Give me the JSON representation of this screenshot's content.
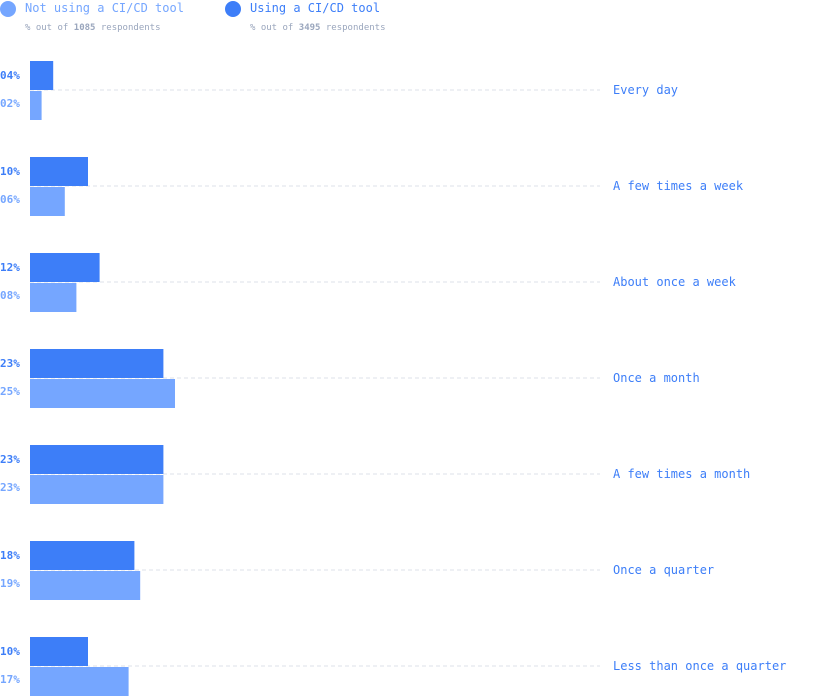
{
  "legend": {
    "not_using": {
      "label": "Not using a CI/CD tool",
      "sub_prefix": "% out of ",
      "count": "1085",
      "sub_suffix": " respondents",
      "color": "#75a6ff"
    },
    "using": {
      "label": "Using a CI/CD tool",
      "sub_prefix": "% out of ",
      "count": "3495",
      "sub_suffix": " respondents",
      "color": "#3d7ef8"
    }
  },
  "chart_data": {
    "type": "bar",
    "orientation": "horizontal",
    "categories": [
      "Every day",
      "A few times a week",
      "About once a week",
      "Once a month",
      "A few times a month",
      "Once a quarter",
      "Less than once a quarter"
    ],
    "series": [
      {
        "name": "Using a CI/CD tool",
        "values": [
          4,
          10,
          12,
          23,
          23,
          18,
          10
        ],
        "labels": [
          "04%",
          "10%",
          "12%",
          "23%",
          "23%",
          "18%",
          "10%"
        ],
        "color": "#3d7ef8"
      },
      {
        "name": "Not using a CI/CD tool",
        "values": [
          2,
          6,
          8,
          25,
          23,
          19,
          17
        ],
        "labels": [
          "02%",
          "06%",
          "08%",
          "25%",
          "23%",
          "19%",
          "17%"
        ],
        "color": "#75a6ff"
      }
    ],
    "grid": "dashed guide line from each bar pair to its category label",
    "legend_position": "top-left"
  }
}
